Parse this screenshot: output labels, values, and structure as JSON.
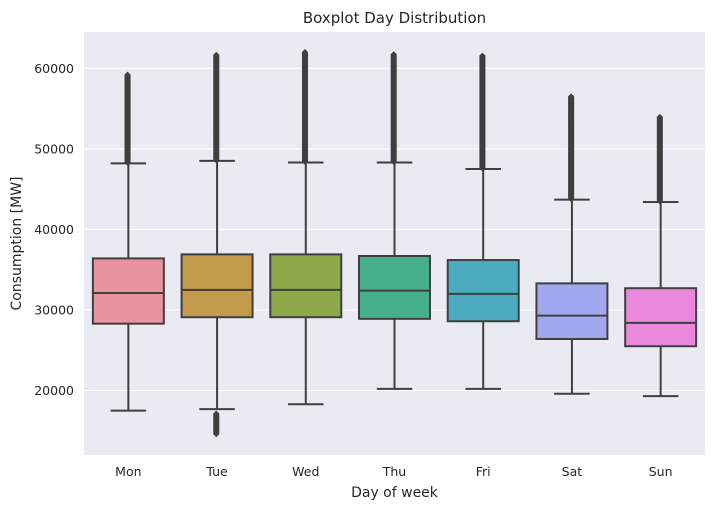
{
  "chart_data": {
    "type": "boxplot",
    "title": "Boxplot Day Distribution",
    "xlabel": "Day of week",
    "ylabel": "Consumption [MW]",
    "ylim": [
      12000,
      64500
    ],
    "yticks": [
      20000,
      30000,
      40000,
      50000,
      60000
    ],
    "ytick_labels": [
      "20000",
      "30000",
      "40000",
      "50000",
      "60000"
    ],
    "grid": true,
    "categories": [
      "Mon",
      "Tue",
      "Wed",
      "Thu",
      "Fri",
      "Sat",
      "Sun"
    ],
    "boxes": [
      {
        "whisker_low": 17500,
        "q1": 28300,
        "median": 32100,
        "q3": 36400,
        "whisker_high": 48200,
        "outliers_low": [],
        "outliers_high_from": 48300,
        "outliers_high_to": 59200,
        "color": "#ea93a0"
      },
      {
        "whisker_low": 17700,
        "q1": 29100,
        "median": 32500,
        "q3": 36900,
        "whisker_high": 48500,
        "outliers_low_from": 14600,
        "outliers_low_to": 17200,
        "outliers_high_from": 48600,
        "outliers_high_to": 61700,
        "color": "#c49a4b"
      },
      {
        "whisker_low": 18300,
        "q1": 29100,
        "median": 32500,
        "q3": 36900,
        "whisker_high": 48300,
        "outliers_low": [],
        "outliers_high_from": 48400,
        "outliers_high_to": 62000,
        "color": "#8da94a"
      },
      {
        "whisker_low": 20200,
        "q1": 28900,
        "median": 32400,
        "q3": 36700,
        "whisker_high": 48300,
        "outliers_low": [],
        "outliers_high_from": 48400,
        "outliers_high_to": 61800,
        "color": "#47af8c"
      },
      {
        "whisker_low": 20200,
        "q1": 28600,
        "median": 32000,
        "q3": 36200,
        "whisker_high": 47500,
        "outliers_low": [],
        "outliers_high_from": 47600,
        "outliers_high_to": 61600,
        "color": "#4cabbe"
      },
      {
        "whisker_low": 19600,
        "q1": 26400,
        "median": 29300,
        "q3": 33300,
        "whisker_high": 43700,
        "outliers_low": [],
        "outliers_high_from": 43800,
        "outliers_high_to": 56500,
        "color": "#a0a9ef"
      },
      {
        "whisker_low": 19300,
        "q1": 25500,
        "median": 28400,
        "q3": 32700,
        "whisker_high": 43400,
        "outliers_low": [],
        "outliers_high_from": 43500,
        "outliers_high_to": 54000,
        "color": "#ea88dd"
      }
    ],
    "colors": {
      "background": "#eaeaf2",
      "grid": "#ffffff",
      "line": "#3f3f3f"
    }
  }
}
